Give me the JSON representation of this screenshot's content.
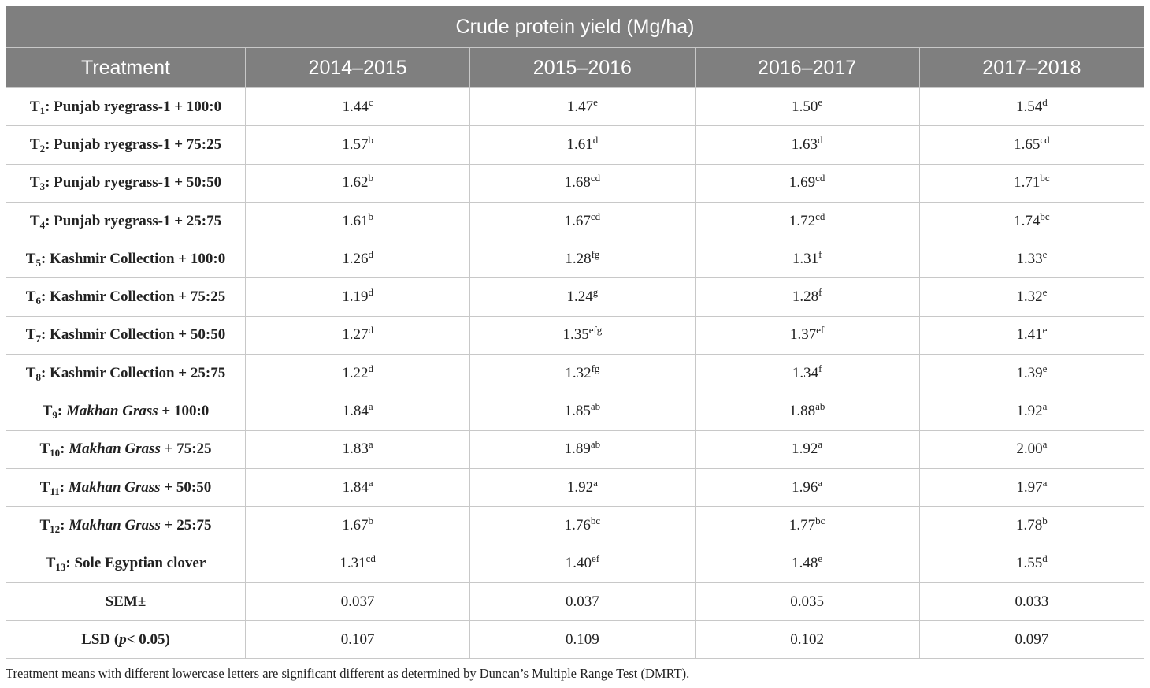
{
  "table": {
    "title": "Crude protein yield (Mg/ha)",
    "header": [
      "Treatment",
      "2014–2015",
      "2015–2016",
      "2016–2017",
      "2017–2018"
    ],
    "rows": [
      {
        "label": [
          {
            "text": "T"
          },
          {
            "text": "1",
            "style": "sub"
          },
          {
            "text": ": Punjab ryegrass-1 + 100:0"
          }
        ],
        "cells": [
          {
            "value": "1.44",
            "sup": "c"
          },
          {
            "value": "1.47",
            "sup": "e"
          },
          {
            "value": "1.50",
            "sup": "e"
          },
          {
            "value": "1.54",
            "sup": "d"
          }
        ]
      },
      {
        "label": [
          {
            "text": "T"
          },
          {
            "text": "2",
            "style": "sub"
          },
          {
            "text": ": Punjab ryegrass-1 + 75:25"
          }
        ],
        "cells": [
          {
            "value": "1.57",
            "sup": "b"
          },
          {
            "value": "1.61",
            "sup": "d"
          },
          {
            "value": "1.63",
            "sup": "d"
          },
          {
            "value": "1.65",
            "sup": "cd"
          }
        ]
      },
      {
        "label": [
          {
            "text": "T"
          },
          {
            "text": "3",
            "style": "sub"
          },
          {
            "text": ": Punjab ryegrass-1 + 50:50"
          }
        ],
        "cells": [
          {
            "value": "1.62",
            "sup": "b"
          },
          {
            "value": "1.68",
            "sup": "cd"
          },
          {
            "value": "1.69",
            "sup": "cd"
          },
          {
            "value": "1.71",
            "sup": "bc"
          }
        ]
      },
      {
        "label": [
          {
            "text": "T"
          },
          {
            "text": "4",
            "style": "sub"
          },
          {
            "text": ": Punjab ryegrass-1 + 25:75"
          }
        ],
        "cells": [
          {
            "value": "1.61",
            "sup": "b"
          },
          {
            "value": "1.67",
            "sup": "cd"
          },
          {
            "value": "1.72",
            "sup": "cd"
          },
          {
            "value": "1.74",
            "sup": "bc"
          }
        ]
      },
      {
        "label": [
          {
            "text": "T"
          },
          {
            "text": "5",
            "style": "sub"
          },
          {
            "text": ": Kashmir Collection + 100:0"
          }
        ],
        "cells": [
          {
            "value": "1.26",
            "sup": "d"
          },
          {
            "value": "1.28",
            "sup": "fg"
          },
          {
            "value": "1.31",
            "sup": "f"
          },
          {
            "value": "1.33",
            "sup": "e"
          }
        ]
      },
      {
        "label": [
          {
            "text": "T"
          },
          {
            "text": "6",
            "style": "sub"
          },
          {
            "text": ": Kashmir Collection + 75:25"
          }
        ],
        "cells": [
          {
            "value": "1.19",
            "sup": "d"
          },
          {
            "value": "1.24",
            "sup": "g"
          },
          {
            "value": "1.28",
            "sup": "f"
          },
          {
            "value": "1.32",
            "sup": "e"
          }
        ]
      },
      {
        "label": [
          {
            "text": "T"
          },
          {
            "text": "7",
            "style": "sub"
          },
          {
            "text": ": Kashmir Collection + 50:50"
          }
        ],
        "cells": [
          {
            "value": "1.27",
            "sup": "d"
          },
          {
            "value": "1.35",
            "sup": "efg"
          },
          {
            "value": "1.37",
            "sup": "ef"
          },
          {
            "value": "1.41",
            "sup": "e"
          }
        ]
      },
      {
        "label": [
          {
            "text": "T"
          },
          {
            "text": "8",
            "style": "sub"
          },
          {
            "text": ": Kashmir Collection + 25:75"
          }
        ],
        "cells": [
          {
            "value": "1.22",
            "sup": "d"
          },
          {
            "value": "1.32",
            "sup": "fg"
          },
          {
            "value": "1.34",
            "sup": "f"
          },
          {
            "value": "1.39",
            "sup": "e"
          }
        ]
      },
      {
        "label": [
          {
            "text": "T"
          },
          {
            "text": "9",
            "style": "sub"
          },
          {
            "text": ": "
          },
          {
            "text": "Makhan Grass",
            "style": "italic"
          },
          {
            "text": " + 100:0"
          }
        ],
        "cells": [
          {
            "value": "1.84",
            "sup": "a"
          },
          {
            "value": "1.85",
            "sup": "ab"
          },
          {
            "value": "1.88",
            "sup": "ab"
          },
          {
            "value": "1.92",
            "sup": "a"
          }
        ]
      },
      {
        "label": [
          {
            "text": "T"
          },
          {
            "text": "10",
            "style": "sub"
          },
          {
            "text": ": "
          },
          {
            "text": "Makhan Grass",
            "style": "italic"
          },
          {
            "text": " + 75:25"
          }
        ],
        "cells": [
          {
            "value": "1.83",
            "sup": "a"
          },
          {
            "value": "1.89",
            "sup": "ab"
          },
          {
            "value": "1.92",
            "sup": "a"
          },
          {
            "value": "2.00",
            "sup": "a"
          }
        ]
      },
      {
        "label": [
          {
            "text": "T"
          },
          {
            "text": "11",
            "style": "sub"
          },
          {
            "text": ": "
          },
          {
            "text": "Makhan Grass",
            "style": "italic"
          },
          {
            "text": " + 50:50"
          }
        ],
        "cells": [
          {
            "value": "1.84",
            "sup": "a"
          },
          {
            "value": "1.92",
            "sup": "a"
          },
          {
            "value": "1.96",
            "sup": "a"
          },
          {
            "value": "1.97",
            "sup": "a"
          }
        ]
      },
      {
        "label": [
          {
            "text": "T"
          },
          {
            "text": "12",
            "style": "sub"
          },
          {
            "text": ": "
          },
          {
            "text": "Makhan Grass",
            "style": "italic"
          },
          {
            "text": " + 25:75"
          }
        ],
        "cells": [
          {
            "value": "1.67",
            "sup": "b"
          },
          {
            "value": "1.76",
            "sup": "bc"
          },
          {
            "value": "1.77",
            "sup": "bc"
          },
          {
            "value": "1.78",
            "sup": "b"
          }
        ]
      },
      {
        "label": [
          {
            "text": "T"
          },
          {
            "text": "13",
            "style": "sub"
          },
          {
            "text": ": Sole Egyptian clover"
          }
        ],
        "cells": [
          {
            "value": "1.31",
            "sup": "cd"
          },
          {
            "value": "1.40",
            "sup": "ef"
          },
          {
            "value": "1.48",
            "sup": "e"
          },
          {
            "value": "1.55",
            "sup": "d"
          }
        ]
      },
      {
        "label": [
          {
            "text": "SEM±"
          }
        ],
        "cells": [
          {
            "value": "0.037"
          },
          {
            "value": "0.037"
          },
          {
            "value": "0.035"
          },
          {
            "value": "0.033"
          }
        ]
      },
      {
        "label": [
          {
            "text": "LSD ("
          },
          {
            "text": "p",
            "style": "italic"
          },
          {
            "text": "< 0.05)"
          }
        ],
        "cells": [
          {
            "value": "0.107"
          },
          {
            "value": "0.109"
          },
          {
            "value": "0.102"
          },
          {
            "value": "0.097"
          }
        ]
      }
    ]
  },
  "footnote": "Treatment means with different lowercase letters are significant different as determined by Duncan’s Multiple Range Test (DMRT)."
}
